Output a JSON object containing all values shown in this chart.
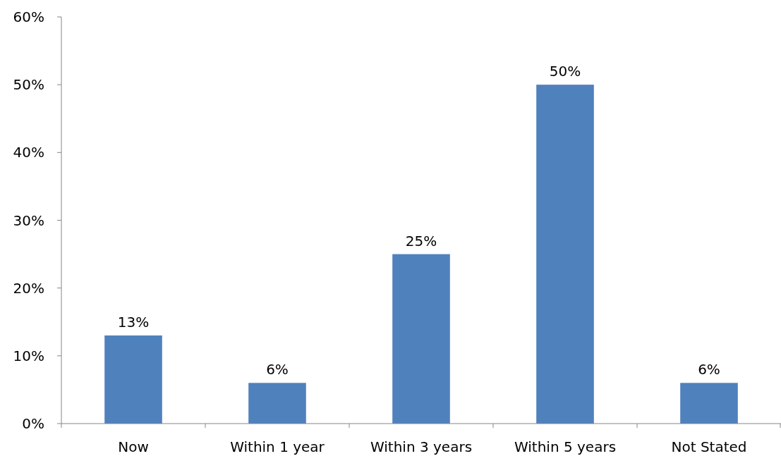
{
  "chart_data": {
    "type": "bar",
    "categories": [
      "Now",
      "Within 1 year",
      "Within 3 years",
      "Within 5 years",
      "Not Stated"
    ],
    "values": [
      13,
      6,
      25,
      50,
      6
    ],
    "value_labels": [
      "13%",
      "6%",
      "25%",
      "50%",
      "6%"
    ],
    "color": "#4f81bd",
    "ylim": [
      0,
      60
    ],
    "yticks": [
      {
        "value": 0,
        "label": "0%"
      },
      {
        "value": 10,
        "label": "10%"
      },
      {
        "value": 20,
        "label": "20%"
      },
      {
        "value": 30,
        "label": "30%"
      },
      {
        "value": 40,
        "label": "40%"
      },
      {
        "value": 50,
        "label": "50%"
      },
      {
        "value": 60,
        "label": "60%"
      }
    ],
    "grid": false
  }
}
